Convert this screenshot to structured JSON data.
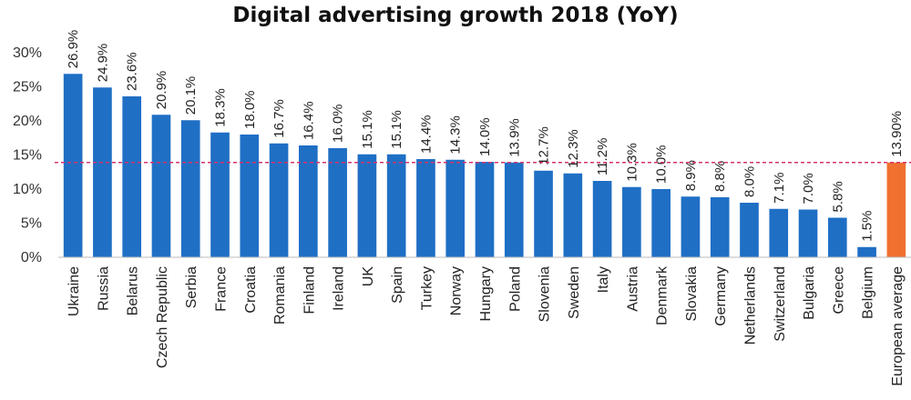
{
  "chart_data": {
    "type": "bar",
    "title": "Digital advertising growth 2018 (YoY)",
    "xlabel": "",
    "ylabel": "",
    "ylim": [
      0,
      30
    ],
    "yticks": [
      "0%",
      "5%",
      "10%",
      "15%",
      "20%",
      "25%",
      "30%"
    ],
    "grid": false,
    "categories": [
      "Ukraine",
      "Russia",
      "Belarus",
      "Czech Republic",
      "Serbia",
      "France",
      "Croatia",
      "Romania",
      "Finland",
      "Ireland",
      "UK",
      "Spain",
      "Turkey",
      "Norway",
      "Hungary",
      "Poland",
      "Slovenia",
      "Sweden",
      "Italy",
      "Austria",
      "Denmark",
      "Slovakia",
      "Germany",
      "Netherlands",
      "Switzerland",
      "Bulgaria",
      "Greece",
      "Belgium",
      "European average"
    ],
    "values": [
      26.9,
      24.9,
      23.6,
      20.9,
      20.1,
      18.3,
      18.0,
      16.7,
      16.4,
      16.0,
      15.1,
      15.1,
      14.4,
      14.3,
      14.0,
      13.9,
      12.7,
      12.3,
      11.2,
      10.3,
      10.0,
      8.9,
      8.8,
      8.0,
      7.1,
      7.0,
      5.8,
      1.5,
      13.9
    ],
    "data_labels": [
      "26.9%",
      "24.9%",
      "23.6%",
      "20.9%",
      "20.1%",
      "18.3%",
      "18.0%",
      "16.7%",
      "16.4%",
      "16.0%",
      "15.1%",
      "15.1%",
      "14.4%",
      "14.3%",
      "14.0%",
      "13.9%",
      "12.7%",
      "12.3%",
      "11.2%",
      "10.3%",
      "10.0%",
      "8.9%",
      "8.8%",
      "8.0%",
      "7.1%",
      "7.0%",
      "5.8%",
      "1.5%",
      "13.90%"
    ],
    "bar_color": "#1f6fc5",
    "highlight_color": "#f07030",
    "reference_line": {
      "value": 13.9,
      "color": "#d6336c",
      "style": "dashed"
    }
  }
}
